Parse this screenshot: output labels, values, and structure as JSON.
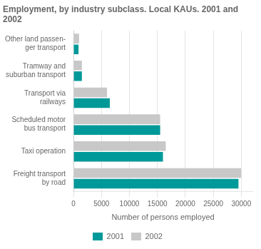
{
  "chart_data": {
    "type": "bar",
    "orientation": "horizontal",
    "title": "Employment, by industry subclass. Local KAUs. 2001 and\n2002",
    "categories": [
      "Freight transport\nby road",
      "Taxi operation",
      "Scheduled motor\nbus transport",
      "Transport via\nrailways",
      "Tramway and\nsuburban transport",
      "Other land passen-\nger transport"
    ],
    "series": [
      {
        "name": "2001",
        "color": "#009999",
        "values": [
          29500,
          16000,
          15500,
          6500,
          1500,
          900
        ]
      },
      {
        "name": "2002",
        "color": "#c8c8c8",
        "values": [
          30000,
          16500,
          15500,
          6000,
          1500,
          1000
        ]
      }
    ],
    "xlabel": "Number of persons employed",
    "xlim": [
      0,
      32000
    ],
    "xticks": [
      0,
      5000,
      10000,
      15000,
      20000,
      25000,
      30000
    ],
    "grid": true,
    "legend": "bottom"
  }
}
